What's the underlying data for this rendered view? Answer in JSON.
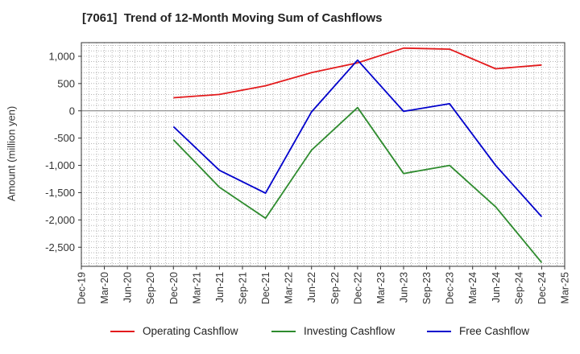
{
  "chart_data": {
    "type": "line",
    "title": "[7061]  Trend of 12-Month Moving Sum of Cashflows",
    "xlabel": "",
    "ylabel": "Amount (million yen)",
    "ylim": [
      -2850,
      1250
    ],
    "yticks": [
      1000,
      500,
      0,
      -500,
      -1000,
      -1500,
      -2000,
      -2500
    ],
    "ytick_labels": [
      "1,000",
      "500",
      "0",
      "-500",
      "-1,000",
      "-1,500",
      "-2,000",
      "-2,500"
    ],
    "categories": [
      "Dec-19",
      "Mar-20",
      "Jun-20",
      "Sep-20",
      "Dec-20",
      "Mar-21",
      "Jun-21",
      "Sep-21",
      "Dec-21",
      "Mar-22",
      "Jun-22",
      "Sep-22",
      "Dec-22",
      "Mar-23",
      "Jun-23",
      "Sep-23",
      "Dec-23",
      "Mar-24",
      "Jun-24",
      "Sep-24",
      "Dec-24",
      "Mar-25"
    ],
    "grid": true,
    "legend_position": "bottom",
    "series": [
      {
        "name": "Operating Cashflow",
        "color": "#e31a1c",
        "values": [
          null,
          null,
          null,
          null,
          240,
          null,
          300,
          null,
          460,
          null,
          700,
          null,
          880,
          null,
          1150,
          null,
          1130,
          null,
          770,
          null,
          840,
          null
        ]
      },
      {
        "name": "Investing Cashflow",
        "color": "#2e8b2e",
        "values": [
          null,
          null,
          null,
          null,
          -530,
          null,
          -1400,
          null,
          -1970,
          null,
          -720,
          null,
          60,
          null,
          -1150,
          null,
          -1000,
          null,
          -1760,
          null,
          -2780,
          null
        ]
      },
      {
        "name": "Free Cashflow",
        "color": "#0000cc",
        "values": [
          null,
          null,
          null,
          null,
          -290,
          null,
          -1090,
          null,
          -1510,
          null,
          -20,
          null,
          930,
          null,
          -10,
          null,
          130,
          null,
          -1000,
          null,
          -1940,
          null
        ]
      }
    ]
  }
}
